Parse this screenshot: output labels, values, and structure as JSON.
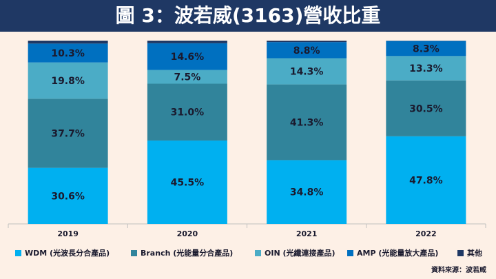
{
  "chart_data": {
    "type": "stacked_bar",
    "title": "圖 3：波若威(3163)營收比重",
    "categories": [
      "2019",
      "2020",
      "2021",
      "2022"
    ],
    "ylim": [
      0,
      100
    ],
    "series": [
      {
        "name": "WDM (光波長分合產品)",
        "color": "#00b0f0",
        "values": [
          30.6,
          45.5,
          34.8,
          47.8
        ],
        "value_labels": [
          "30.6%",
          "45.5%",
          "34.8%",
          "47.8%"
        ]
      },
      {
        "name": "Branch (光能量分合產品)",
        "color": "#31849b",
        "values": [
          37.7,
          31.0,
          41.3,
          30.5
        ],
        "value_labels": [
          "37.7%",
          "31.0%",
          "41.3%",
          "30.5%"
        ]
      },
      {
        "name": "OIN (光纖連接產品)",
        "color": "#4bacc6",
        "values": [
          19.8,
          7.5,
          14.3,
          13.3
        ],
        "value_labels": [
          "19.8%",
          "7.5%",
          "14.3%",
          "13.3%"
        ]
      },
      {
        "name": "AMP (光能量放大產品)",
        "color": "#0070c0",
        "values": [
          10.3,
          14.6,
          8.8,
          8.3
        ],
        "value_labels": [
          "10.3%",
          "14.6%",
          "8.8%",
          "8.3%"
        ]
      },
      {
        "name": "其他",
        "color": "#1f3864",
        "values": [
          1.6,
          1.4,
          0.8,
          0.1
        ]
      }
    ],
    "source": "資料來源：波若威"
  }
}
